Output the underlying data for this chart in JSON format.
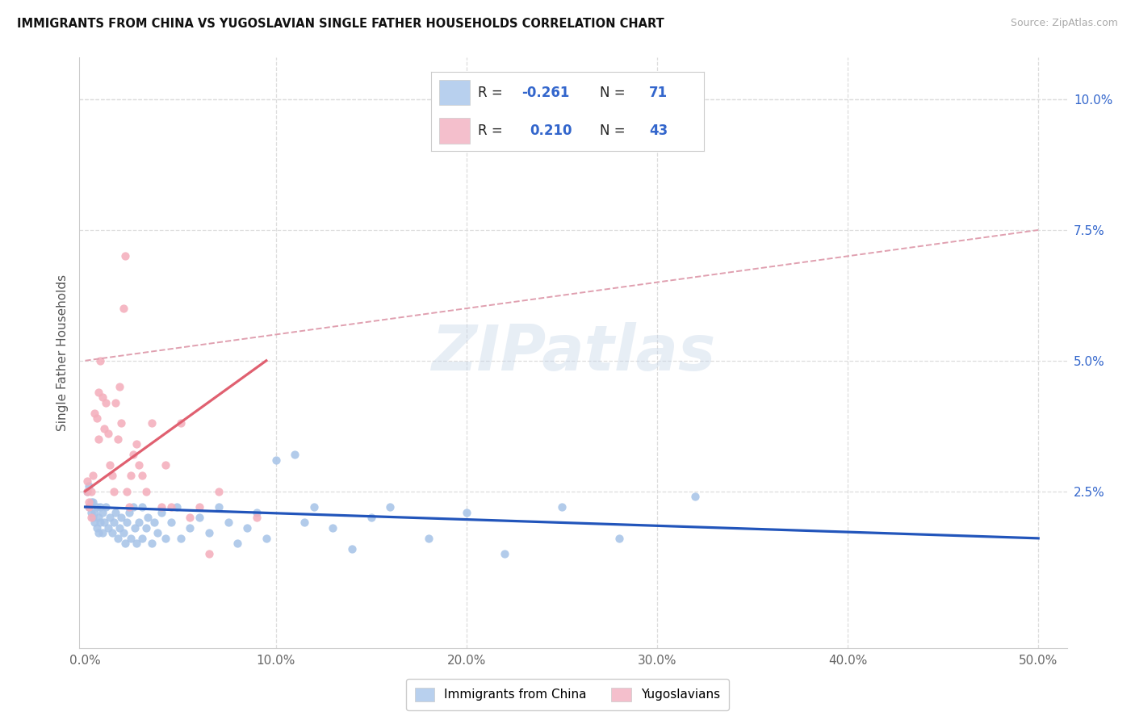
{
  "title": "IMMIGRANTS FROM CHINA VS YUGOSLAVIAN SINGLE FATHER HOUSEHOLDS CORRELATION CHART",
  "source": "Source: ZipAtlas.com",
  "ylabel": "Single Father Households",
  "x_tick_labels": [
    "0.0%",
    "10.0%",
    "20.0%",
    "30.0%",
    "40.0%",
    "50.0%"
  ],
  "x_tick_values": [
    0.0,
    0.1,
    0.2,
    0.3,
    0.4,
    0.5
  ],
  "y_tick_labels": [
    "2.5%",
    "5.0%",
    "7.5%",
    "10.0%"
  ],
  "y_tick_values": [
    0.025,
    0.05,
    0.075,
    0.1
  ],
  "watermark": "ZIPatlas",
  "xlim": [
    -0.003,
    0.515
  ],
  "ylim": [
    -0.005,
    0.108
  ],
  "legend_blue_r": "R = ",
  "legend_blue_r_val": "-0.261",
  "legend_blue_n": "N = ",
  "legend_blue_n_val": "71",
  "legend_pink_r": "R =  ",
  "legend_pink_r_val": "0.210",
  "legend_pink_n": "N = ",
  "legend_pink_n_val": "43",
  "blue_dots": [
    [
      0.001,
      0.025
    ],
    [
      0.002,
      0.026
    ],
    [
      0.002,
      0.022
    ],
    [
      0.003,
      0.023
    ],
    [
      0.003,
      0.021
    ],
    [
      0.004,
      0.02
    ],
    [
      0.004,
      0.023
    ],
    [
      0.005,
      0.021
    ],
    [
      0.005,
      0.019
    ],
    [
      0.006,
      0.022
    ],
    [
      0.006,
      0.018
    ],
    [
      0.007,
      0.02
    ],
    [
      0.007,
      0.017
    ],
    [
      0.008,
      0.019
    ],
    [
      0.008,
      0.022
    ],
    [
      0.009,
      0.021
    ],
    [
      0.009,
      0.017
    ],
    [
      0.01,
      0.019
    ],
    [
      0.011,
      0.022
    ],
    [
      0.012,
      0.018
    ],
    [
      0.013,
      0.02
    ],
    [
      0.014,
      0.017
    ],
    [
      0.015,
      0.019
    ],
    [
      0.016,
      0.021
    ],
    [
      0.017,
      0.016
    ],
    [
      0.018,
      0.018
    ],
    [
      0.019,
      0.02
    ],
    [
      0.02,
      0.017
    ],
    [
      0.021,
      0.015
    ],
    [
      0.022,
      0.019
    ],
    [
      0.023,
      0.021
    ],
    [
      0.024,
      0.016
    ],
    [
      0.025,
      0.022
    ],
    [
      0.026,
      0.018
    ],
    [
      0.027,
      0.015
    ],
    [
      0.028,
      0.019
    ],
    [
      0.03,
      0.016
    ],
    [
      0.03,
      0.022
    ],
    [
      0.032,
      0.018
    ],
    [
      0.033,
      0.02
    ],
    [
      0.035,
      0.015
    ],
    [
      0.036,
      0.019
    ],
    [
      0.038,
      0.017
    ],
    [
      0.04,
      0.021
    ],
    [
      0.042,
      0.016
    ],
    [
      0.045,
      0.019
    ],
    [
      0.048,
      0.022
    ],
    [
      0.05,
      0.016
    ],
    [
      0.055,
      0.018
    ],
    [
      0.06,
      0.02
    ],
    [
      0.065,
      0.017
    ],
    [
      0.07,
      0.022
    ],
    [
      0.075,
      0.019
    ],
    [
      0.08,
      0.015
    ],
    [
      0.085,
      0.018
    ],
    [
      0.09,
      0.021
    ],
    [
      0.095,
      0.016
    ],
    [
      0.1,
      0.031
    ],
    [
      0.11,
      0.032
    ],
    [
      0.115,
      0.019
    ],
    [
      0.12,
      0.022
    ],
    [
      0.13,
      0.018
    ],
    [
      0.14,
      0.014
    ],
    [
      0.15,
      0.02
    ],
    [
      0.16,
      0.022
    ],
    [
      0.18,
      0.016
    ],
    [
      0.2,
      0.021
    ],
    [
      0.22,
      0.013
    ],
    [
      0.25,
      0.022
    ],
    [
      0.28,
      0.016
    ],
    [
      0.32,
      0.024
    ]
  ],
  "pink_dots": [
    [
      0.001,
      0.025
    ],
    [
      0.001,
      0.027
    ],
    [
      0.002,
      0.022
    ],
    [
      0.002,
      0.023
    ],
    [
      0.003,
      0.02
    ],
    [
      0.003,
      0.025
    ],
    [
      0.004,
      0.028
    ],
    [
      0.005,
      0.04
    ],
    [
      0.006,
      0.039
    ],
    [
      0.007,
      0.035
    ],
    [
      0.007,
      0.044
    ],
    [
      0.008,
      0.05
    ],
    [
      0.009,
      0.043
    ],
    [
      0.01,
      0.037
    ],
    [
      0.011,
      0.042
    ],
    [
      0.012,
      0.036
    ],
    [
      0.013,
      0.03
    ],
    [
      0.014,
      0.028
    ],
    [
      0.015,
      0.025
    ],
    [
      0.016,
      0.042
    ],
    [
      0.017,
      0.035
    ],
    [
      0.018,
      0.045
    ],
    [
      0.019,
      0.038
    ],
    [
      0.02,
      0.06
    ],
    [
      0.021,
      0.07
    ],
    [
      0.022,
      0.025
    ],
    [
      0.023,
      0.022
    ],
    [
      0.024,
      0.028
    ],
    [
      0.025,
      0.032
    ],
    [
      0.027,
      0.034
    ],
    [
      0.028,
      0.03
    ],
    [
      0.03,
      0.028
    ],
    [
      0.032,
      0.025
    ],
    [
      0.035,
      0.038
    ],
    [
      0.04,
      0.022
    ],
    [
      0.042,
      0.03
    ],
    [
      0.045,
      0.022
    ],
    [
      0.05,
      0.038
    ],
    [
      0.055,
      0.02
    ],
    [
      0.06,
      0.022
    ],
    [
      0.065,
      0.013
    ],
    [
      0.07,
      0.025
    ],
    [
      0.09,
      0.02
    ]
  ],
  "blue_line_x": [
    0.0,
    0.5
  ],
  "blue_line_y": [
    0.022,
    0.016
  ],
  "pink_line_x": [
    0.0,
    0.095
  ],
  "pink_line_y": [
    0.025,
    0.05
  ],
  "dashed_line_x": [
    0.0,
    0.5
  ],
  "dashed_line_y": [
    0.05,
    0.075
  ],
  "blue_dot_color": "#a8c4e8",
  "pink_dot_color": "#f4afbc",
  "blue_line_color": "#2255bb",
  "pink_line_color": "#e06070",
  "dashed_line_color": "#e0a0b0",
  "grid_color": "#dddddd",
  "legend_blue_fill": "#b8d0ee",
  "legend_pink_fill": "#f4bfcc",
  "text_color_blue": "#3366cc",
  "text_color_black": "#222222",
  "dot_size": 55
}
